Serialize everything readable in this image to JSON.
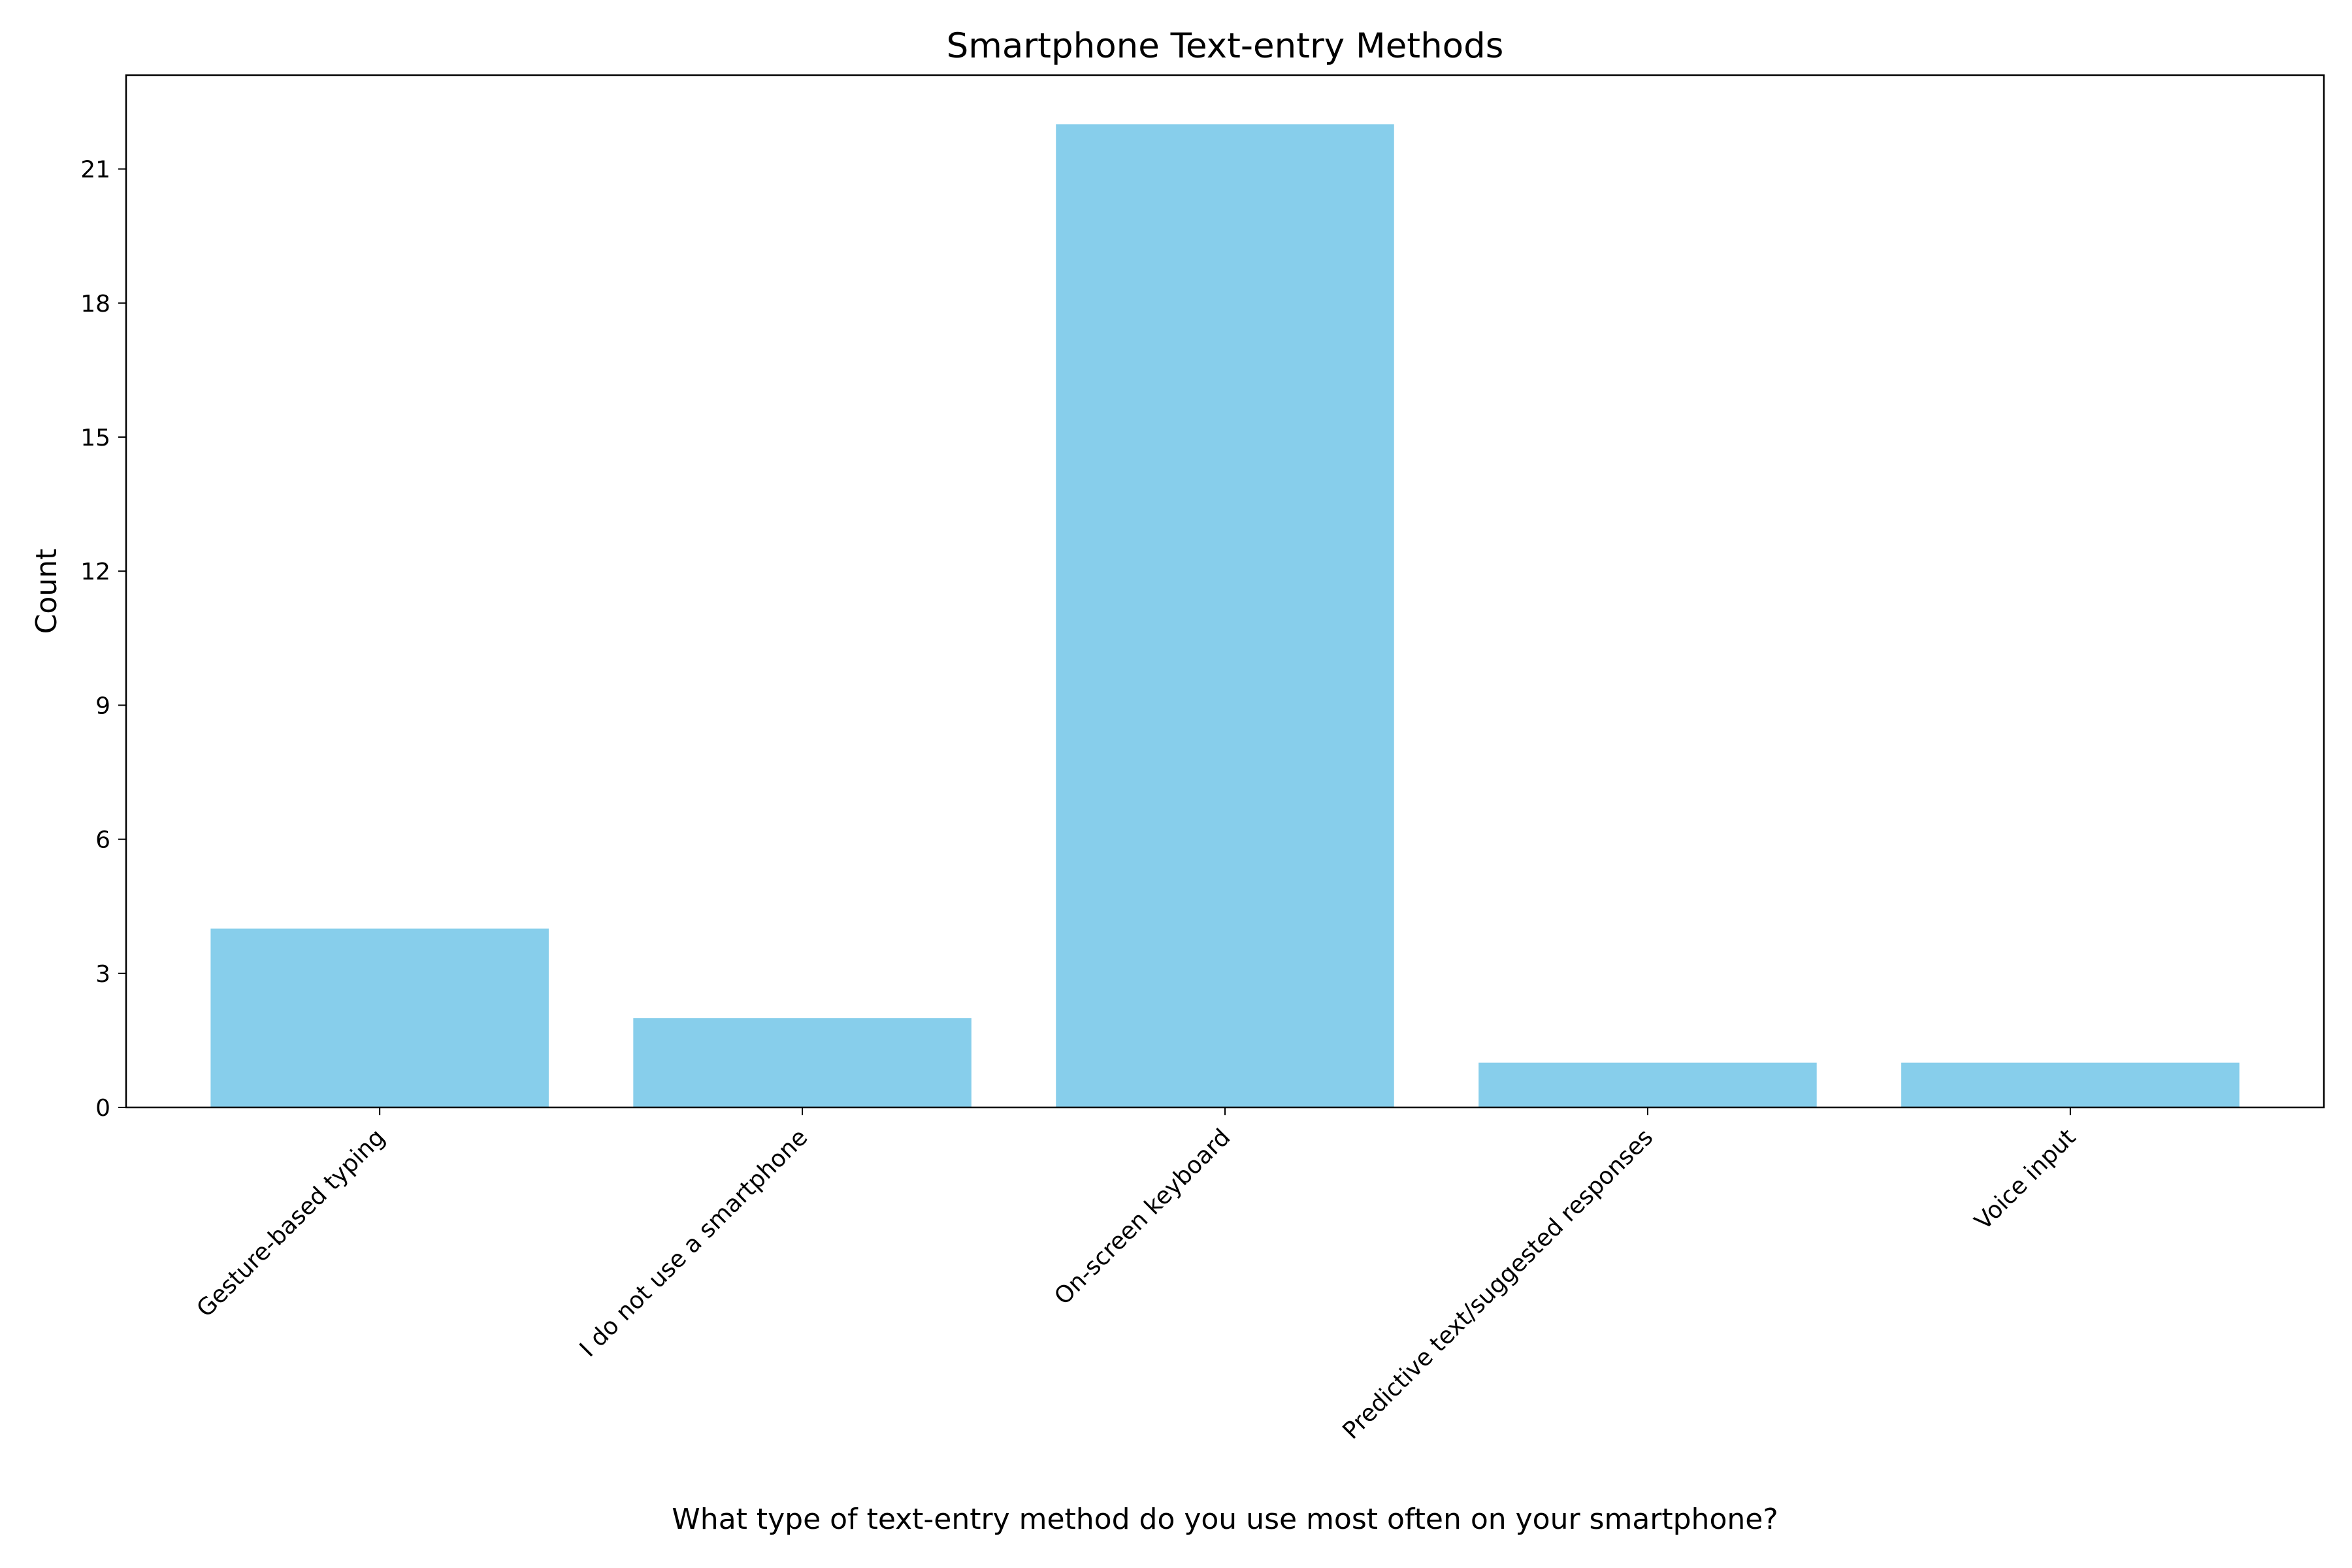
{
  "chart_data": {
    "type": "bar",
    "title": "Smartphone Text-entry Methods",
    "xlabel": "What type of text-entry method do you use most often on your smartphone?",
    "ylabel": "Count",
    "categories": [
      "Gesture-based typing",
      "I do not use a smartphone",
      "On-screen keyboard",
      "Predictive text/suggested responses",
      "Voice input"
    ],
    "values": [
      4,
      2,
      22,
      1,
      1
    ],
    "ylim": [
      0,
      23.1
    ],
    "yticks": [
      0,
      3,
      6,
      9,
      12,
      15,
      18,
      21
    ],
    "grid": false,
    "bar_color": "#87CEEB",
    "axis_color": "#000000"
  }
}
